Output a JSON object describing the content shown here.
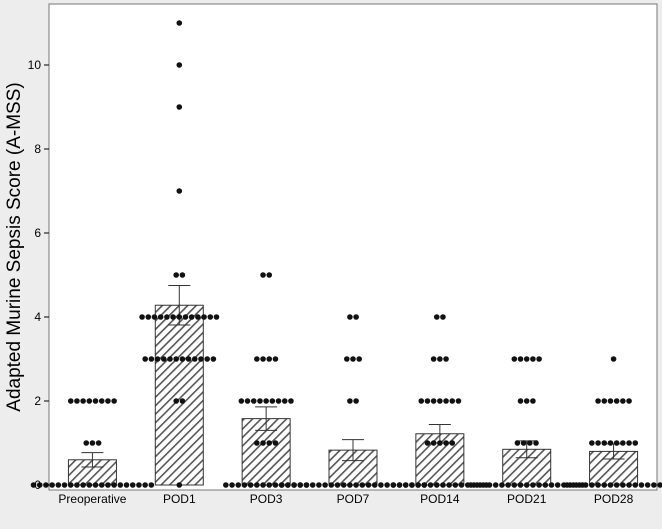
{
  "chart_data": {
    "type": "bar",
    "title": "",
    "xlabel": "",
    "ylabel": "Adapted Murine Sepsis Score (A-MSS)",
    "ylim": [
      0,
      11.4
    ],
    "yticks": [
      0,
      2,
      4,
      6,
      8,
      10
    ],
    "grid": false,
    "legend": "none",
    "bar_fill": "hatched",
    "categories": [
      "Preoperative",
      "POD1",
      "POD3",
      "POD7",
      "POD14",
      "POD21",
      "POD28"
    ],
    "series": [
      {
        "values": [
          0.6,
          4.28,
          1.58,
          0.83,
          1.22,
          0.85,
          0.8
        ],
        "error": [
          0.17,
          0.47,
          0.28,
          0.25,
          0.22,
          0.2,
          0.18
        ],
        "points": [
          [
            0,
            0,
            0,
            0,
            0,
            0,
            0,
            0,
            0,
            0,
            0,
            0,
            0,
            0,
            0,
            0,
            0,
            0,
            0,
            0,
            1,
            1,
            1,
            2,
            2,
            2,
            2,
            2,
            2,
            2,
            2
          ],
          [
            11,
            10,
            9,
            7,
            5,
            5,
            4,
            4,
            4,
            4,
            4,
            4,
            4,
            4,
            4,
            4,
            4,
            4,
            4,
            3,
            3,
            3,
            3,
            3,
            3,
            3,
            3,
            3,
            3,
            3,
            3,
            2,
            2,
            0
          ],
          [
            5,
            5,
            3,
            3,
            3,
            3,
            2,
            2,
            2,
            2,
            2,
            2,
            2,
            2,
            2,
            1,
            1,
            1,
            1,
            0,
            0,
            0,
            0,
            0,
            0,
            0,
            0,
            0,
            0,
            0,
            0,
            0,
            0
          ],
          [
            4,
            4,
            3,
            3,
            3,
            2,
            2,
            0,
            0,
            0,
            0,
            0,
            0,
            0,
            0,
            0,
            0,
            0,
            0,
            0,
            0,
            0,
            0,
            0,
            0,
            0,
            0,
            0,
            0,
            0,
            0
          ],
          [
            4,
            4,
            3,
            3,
            3,
            2,
            2,
            2,
            2,
            2,
            2,
            2,
            1,
            1,
            1,
            1,
            1,
            0,
            0,
            0,
            0,
            0,
            0,
            0,
            0,
            0,
            0,
            0,
            0,
            0,
            0,
            0,
            0
          ],
          [
            3,
            3,
            3,
            3,
            3,
            2,
            2,
            2,
            1,
            1,
            1,
            1,
            0,
            0,
            0,
            0,
            0,
            0,
            0,
            0,
            0,
            0,
            0,
            0,
            0,
            0,
            0,
            0,
            0,
            0,
            0
          ],
          [
            3,
            2,
            2,
            2,
            2,
            2,
            2,
            1,
            1,
            1,
            1,
            1,
            1,
            1,
            1,
            0,
            0,
            0,
            0,
            0,
            0,
            0,
            0,
            0,
            0,
            0,
            0,
            0,
            0,
            0,
            0
          ]
        ]
      }
    ],
    "colors": {
      "background": "#ededed",
      "plot_area": "#ffffff",
      "bar_edge": "#333333",
      "hatch": "#555555",
      "point": "#111111"
    }
  }
}
